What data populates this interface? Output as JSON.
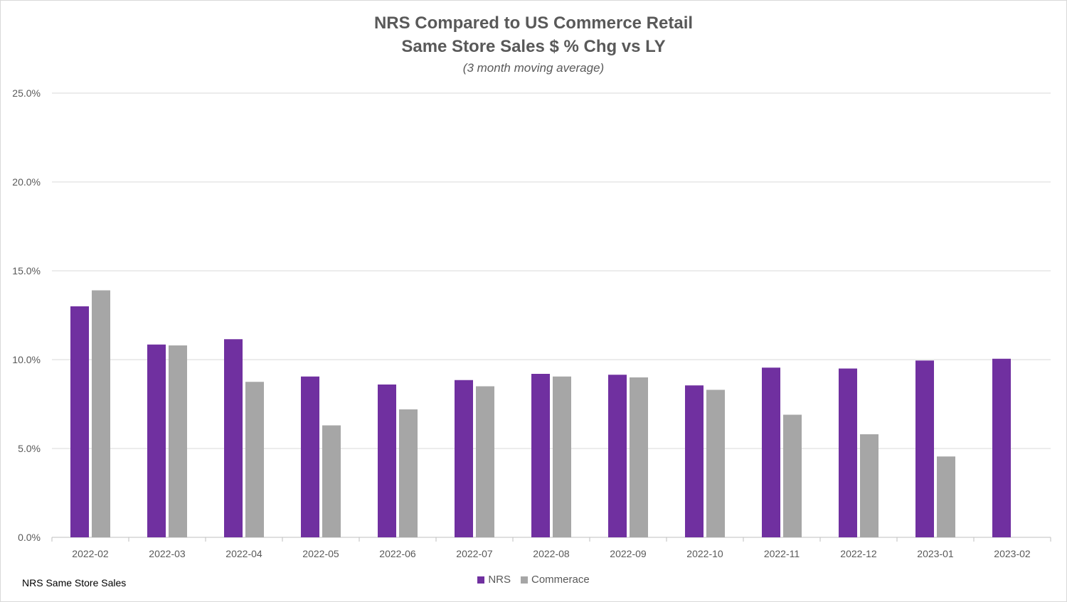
{
  "chart_data": {
    "type": "bar",
    "title": "NRS Compared to US Commerce Retail",
    "subtitle": "Same Store Sales $ % Chg vs LY",
    "note": "(3 month moving average)",
    "categories": [
      "2022-02",
      "2022-03",
      "2022-04",
      "2022-05",
      "2022-06",
      "2022-07",
      "2022-08",
      "2022-09",
      "2022-10",
      "2022-11",
      "2022-12",
      "2023-01",
      "2023-02"
    ],
    "series": [
      {
        "name": "NRS",
        "color": "#7030a0",
        "values": [
          13.0,
          10.85,
          11.15,
          9.05,
          8.6,
          8.85,
          9.2,
          9.15,
          8.55,
          9.55,
          9.5,
          9.95,
          10.05
        ]
      },
      {
        "name": "Commerace",
        "color": "#a6a6a6",
        "values": [
          13.9,
          10.8,
          8.75,
          6.3,
          7.2,
          8.5,
          9.05,
          9.0,
          8.3,
          6.9,
          5.8,
          4.55,
          null
        ]
      }
    ],
    "ylim": [
      0,
      25
    ],
    "yticks": [
      "0.0%",
      "5.0%",
      "10.0%",
      "15.0%",
      "20.0%",
      "25.0%"
    ],
    "grid": true,
    "legend": "bottom-center",
    "footnote": "NRS Same Store Sales"
  }
}
